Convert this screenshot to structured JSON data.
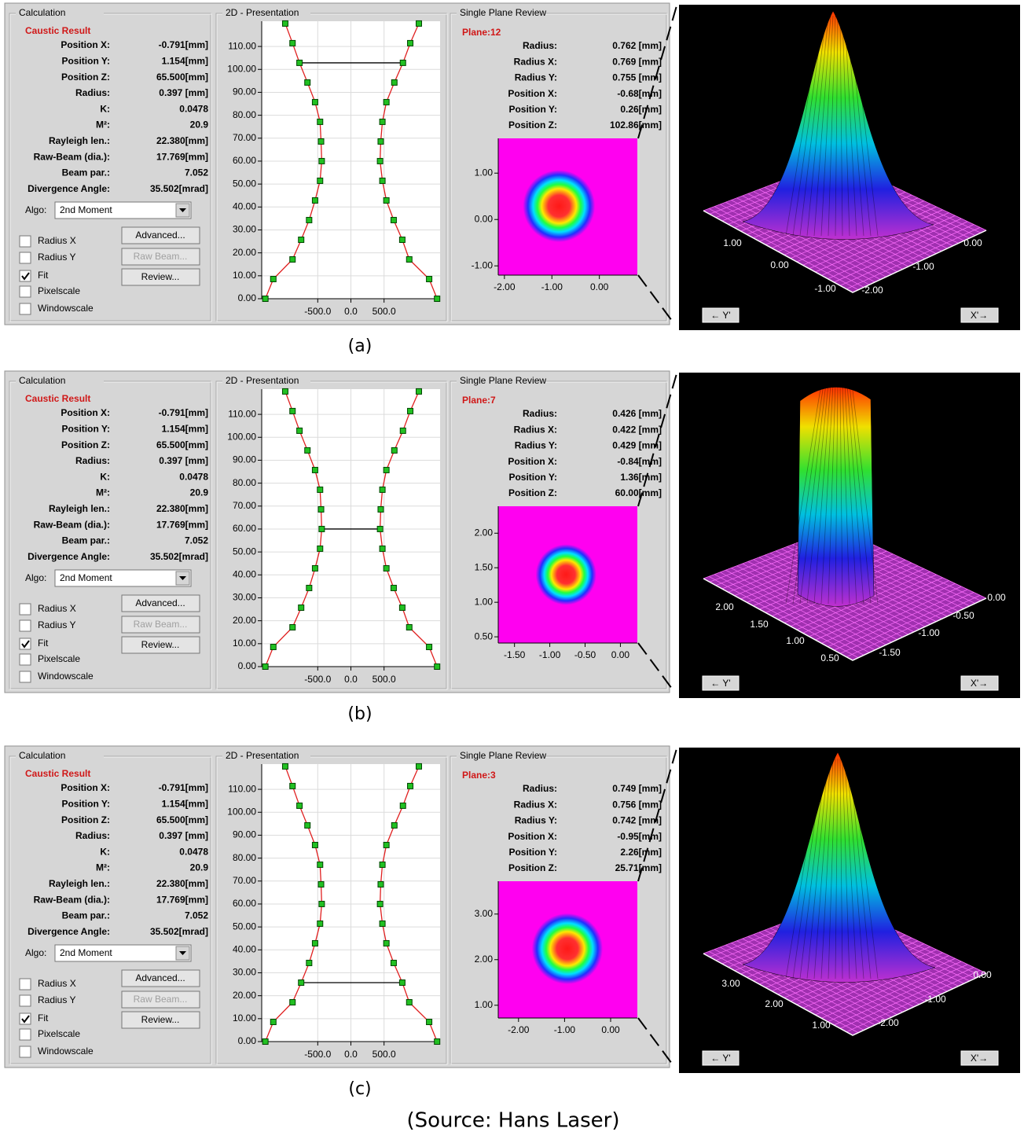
{
  "panels": [
    {
      "calculation": {
        "title": "Calculation",
        "result_title": "Caustic Result",
        "rows": [
          {
            "label": "Position X:",
            "value": "-0.791[mm]"
          },
          {
            "label": "Position Y:",
            "value": "1.154[mm]"
          },
          {
            "label": "Position Z:",
            "value": "65.500[mm]"
          },
          {
            "label": "Radius:",
            "value": "0.397 [mm]"
          },
          {
            "label": "K:",
            "value": "0.0478"
          },
          {
            "label": "M²:",
            "value": "20.9"
          },
          {
            "label": "Rayleigh len.:",
            "value": "22.380[mm]"
          },
          {
            "label": "Raw-Beam (dia.):",
            "value": "17.769[mm]"
          },
          {
            "label": "Beam par.:",
            "value": "7.052"
          },
          {
            "label": "Divergence Angle:",
            "value": "35.502[mrad]"
          }
        ],
        "algo_label": "Algo:",
        "algo": "2nd Moment",
        "checkboxes": [
          {
            "label": "Radius X",
            "checked": false
          },
          {
            "label": "Radius Y",
            "checked": false
          },
          {
            "label": "Fit",
            "checked": true
          },
          {
            "label": "Pixelscale",
            "checked": false
          },
          {
            "label": "Windowscale",
            "checked": false
          }
        ],
        "buttons": [
          "Advanced...",
          "Raw Beam...",
          "Review..."
        ]
      },
      "presentation": {
        "title": "2D - Presentation",
        "type": "scatter",
        "z": [
          0,
          8.57,
          17.14,
          25.71,
          34.29,
          42.86,
          51.43,
          60,
          68.57,
          77.14,
          85.71,
          94.29,
          102.86,
          111.43,
          120
        ],
        "left": [
          -1290,
          -1170,
          -880,
          -750,
          -630,
          -540,
          -465,
          -440,
          -450,
          -465,
          -540,
          -655,
          -775,
          -880,
          -990
        ],
        "right": [
          1300,
          1180,
          880,
          775,
          645,
          535,
          475,
          440,
          450,
          475,
          535,
          655,
          785,
          895,
          1025
        ],
        "xlim": [
          -1345,
          1345
        ],
        "xticks": [
          {
            "value": -500,
            "label": "-500.0"
          },
          {
            "value": 0,
            "label": "0.0"
          },
          {
            "value": 500,
            "label": "500.0"
          }
        ],
        "ylim": [
          0,
          121
        ],
        "yticks": [
          {
            "value": 0,
            "label": "0.00"
          },
          {
            "value": 10,
            "label": "10.00"
          },
          {
            "value": 20,
            "label": "20.00"
          },
          {
            "value": 30,
            "label": "30.00"
          },
          {
            "value": 40,
            "label": "40.00"
          },
          {
            "value": 50,
            "label": "50.00"
          },
          {
            "value": 60,
            "label": "60.00"
          },
          {
            "value": 70,
            "label": "70.00"
          },
          {
            "value": 80,
            "label": "80.00"
          },
          {
            "value": 90,
            "label": "90.00"
          },
          {
            "value": 100,
            "label": "100.00"
          },
          {
            "value": 110,
            "label": "110.00"
          }
        ],
        "highlight_z": 102.86,
        "grid": true
      },
      "plane_review": {
        "title": "Single Plane Review",
        "plane": "Plane:12",
        "rows": [
          {
            "label": "Radius:",
            "value": "0.762 [mm]"
          },
          {
            "label": "Radius X:",
            "value": "0.769 [mm]"
          },
          {
            "label": "Radius Y:",
            "value": "0.755 [mm]"
          },
          {
            "label": "Position X:",
            "value": "-0.68[mm]"
          },
          {
            "label": "Position Y:",
            "value": "0.26[mm]"
          },
          {
            "label": "Position Z:",
            "value": "102.86[mm]"
          }
        ],
        "xlim": [
          -2.13,
          0.8
        ],
        "xticks": [
          {
            "value": -2,
            "label": "-2.00"
          },
          {
            "value": -1,
            "label": "-1.00"
          },
          {
            "value": 0,
            "label": "0.00"
          }
        ],
        "ylim": [
          -1.2,
          1.75
        ],
        "yticks": [
          {
            "value": 1,
            "label": "1.00"
          },
          {
            "value": 0,
            "label": "0.00"
          },
          {
            "value": -1,
            "label": "-1.00"
          }
        ],
        "spot": {
          "cx": -0.85,
          "cy": 0.29,
          "r": 0.76
        }
      },
      "view3d": {
        "labels": [
          "1.00",
          "0.00",
          "-1.00",
          "-2.00",
          "-1.00",
          "0.00"
        ],
        "y_button": "← Y'",
        "x_button": "X'→"
      },
      "caption": "(a)"
    },
    {
      "calculation": {
        "title": "Calculation",
        "result_title": "Caustic Result",
        "rows": [
          {
            "label": "Position X:",
            "value": "-0.791[mm]"
          },
          {
            "label": "Position Y:",
            "value": "1.154[mm]"
          },
          {
            "label": "Position Z:",
            "value": "65.500[mm]"
          },
          {
            "label": "Radius:",
            "value": "0.397 [mm]"
          },
          {
            "label": "K:",
            "value": "0.0478"
          },
          {
            "label": "M²:",
            "value": "20.9"
          },
          {
            "label": "Rayleigh len.:",
            "value": "22.380[mm]"
          },
          {
            "label": "Raw-Beam (dia.):",
            "value": "17.769[mm]"
          },
          {
            "label": "Beam par.:",
            "value": "7.052"
          },
          {
            "label": "Divergence Angle:",
            "value": "35.502[mrad]"
          }
        ],
        "algo_label": "Algo:",
        "algo": "2nd Moment",
        "checkboxes": [
          {
            "label": "Radius X",
            "checked": false
          },
          {
            "label": "Radius Y",
            "checked": false
          },
          {
            "label": "Fit",
            "checked": true
          },
          {
            "label": "Pixelscale",
            "checked": false
          },
          {
            "label": "Windowscale",
            "checked": false
          }
        ],
        "buttons": [
          "Advanced...",
          "Raw Beam...",
          "Review..."
        ]
      },
      "presentation": {
        "title": "2D - Presentation",
        "type": "scatter",
        "z": [
          0,
          8.57,
          17.14,
          25.71,
          34.29,
          42.86,
          51.43,
          60,
          68.57,
          77.14,
          85.71,
          94.29,
          102.86,
          111.43,
          120
        ],
        "left": [
          -1290,
          -1170,
          -880,
          -750,
          -630,
          -540,
          -465,
          -440,
          -450,
          -465,
          -540,
          -655,
          -775,
          -880,
          -990
        ],
        "right": [
          1300,
          1180,
          880,
          775,
          645,
          535,
          475,
          440,
          450,
          475,
          535,
          655,
          785,
          895,
          1025
        ],
        "xlim": [
          -1345,
          1345
        ],
        "xticks": [
          {
            "value": -500,
            "label": "-500.0"
          },
          {
            "value": 0,
            "label": "0.0"
          },
          {
            "value": 500,
            "label": "500.0"
          }
        ],
        "ylim": [
          0,
          121
        ],
        "yticks": [
          {
            "value": 0,
            "label": "0.00"
          },
          {
            "value": 10,
            "label": "10.00"
          },
          {
            "value": 20,
            "label": "20.00"
          },
          {
            "value": 30,
            "label": "30.00"
          },
          {
            "value": 40,
            "label": "40.00"
          },
          {
            "value": 50,
            "label": "50.00"
          },
          {
            "value": 60,
            "label": "60.00"
          },
          {
            "value": 70,
            "label": "70.00"
          },
          {
            "value": 80,
            "label": "80.00"
          },
          {
            "value": 90,
            "label": "90.00"
          },
          {
            "value": 100,
            "label": "100.00"
          },
          {
            "value": 110,
            "label": "110.00"
          }
        ],
        "highlight_z": 60,
        "grid": true
      },
      "plane_review": {
        "title": "Single Plane Review",
        "plane": "Plane:7",
        "rows": [
          {
            "label": "Radius:",
            "value": "0.426 [mm]"
          },
          {
            "label": "Radius X:",
            "value": "0.422 [mm]"
          },
          {
            "label": "Radius Y:",
            "value": "0.429 [mm]"
          },
          {
            "label": "Position X:",
            "value": "-0.84[mm]"
          },
          {
            "label": "Position Y:",
            "value": "1.36[mm]"
          },
          {
            "label": "Position Z:",
            "value": "60.00[mm]"
          }
        ],
        "xlim": [
          -1.73,
          0.24
        ],
        "xticks": [
          {
            "value": -1.5,
            "label": "-1.50"
          },
          {
            "value": -1,
            "label": "-1.00"
          },
          {
            "value": -0.5,
            "label": "-0.50"
          },
          {
            "value": 0,
            "label": "0.00"
          }
        ],
        "ylim": [
          0.41,
          2.39
        ],
        "yticks": [
          {
            "value": 2,
            "label": "2.00"
          },
          {
            "value": 1.5,
            "label": "1.50"
          },
          {
            "value": 1,
            "label": "1.00"
          },
          {
            "value": 0.5,
            "label": "0.50"
          }
        ],
        "spot": {
          "cx": -0.77,
          "cy": 1.4,
          "r": 0.43
        }
      },
      "view3d": {
        "labels": [
          "2.00",
          "1.50",
          "1.00",
          "0.50",
          "-1.50",
          "-1.00",
          "-0.50",
          "0.00"
        ],
        "y_button": "← Y'",
        "x_button": "X'→"
      },
      "caption": "(b)"
    },
    {
      "calculation": {
        "title": "Calculation",
        "result_title": "Caustic Result",
        "rows": [
          {
            "label": "Position X:",
            "value": "-0.791[mm]"
          },
          {
            "label": "Position Y:",
            "value": "1.154[mm]"
          },
          {
            "label": "Position Z:",
            "value": "65.500[mm]"
          },
          {
            "label": "Radius:",
            "value": "0.397 [mm]"
          },
          {
            "label": "K:",
            "value": "0.0478"
          },
          {
            "label": "M²:",
            "value": "20.9"
          },
          {
            "label": "Rayleigh len.:",
            "value": "22.380[mm]"
          },
          {
            "label": "Raw-Beam (dia.):",
            "value": "17.769[mm]"
          },
          {
            "label": "Beam par.:",
            "value": "7.052"
          },
          {
            "label": "Divergence Angle:",
            "value": "35.502[mrad]"
          }
        ],
        "algo_label": "Algo:",
        "algo": "2nd Moment",
        "checkboxes": [
          {
            "label": "Radius X",
            "checked": false
          },
          {
            "label": "Radius Y",
            "checked": false
          },
          {
            "label": "Fit",
            "checked": true
          },
          {
            "label": "Pixelscale",
            "checked": false
          },
          {
            "label": "Windowscale",
            "checked": false
          }
        ],
        "buttons": [
          "Advanced...",
          "Raw Beam...",
          "Review..."
        ]
      },
      "presentation": {
        "title": "2D - Presentation",
        "type": "scatter",
        "z": [
          0,
          8.57,
          17.14,
          25.71,
          34.29,
          42.86,
          51.43,
          60,
          68.57,
          77.14,
          85.71,
          94.29,
          102.86,
          111.43,
          120
        ],
        "left": [
          -1290,
          -1170,
          -880,
          -750,
          -630,
          -540,
          -465,
          -440,
          -450,
          -465,
          -540,
          -655,
          -775,
          -880,
          -990
        ],
        "right": [
          1300,
          1180,
          880,
          775,
          645,
          535,
          475,
          440,
          450,
          475,
          535,
          655,
          785,
          895,
          1025
        ],
        "xlim": [
          -1345,
          1345
        ],
        "xticks": [
          {
            "value": -500,
            "label": "-500.0"
          },
          {
            "value": 0,
            "label": "0.0"
          },
          {
            "value": 500,
            "label": "500.0"
          }
        ],
        "ylim": [
          0,
          121
        ],
        "yticks": [
          {
            "value": 0,
            "label": "0.00"
          },
          {
            "value": 10,
            "label": "10.00"
          },
          {
            "value": 20,
            "label": "20.00"
          },
          {
            "value": 30,
            "label": "30.00"
          },
          {
            "value": 40,
            "label": "40.00"
          },
          {
            "value": 50,
            "label": "50.00"
          },
          {
            "value": 60,
            "label": "60.00"
          },
          {
            "value": 70,
            "label": "70.00"
          },
          {
            "value": 80,
            "label": "80.00"
          },
          {
            "value": 90,
            "label": "90.00"
          },
          {
            "value": 100,
            "label": "100.00"
          },
          {
            "value": 110,
            "label": "110.00"
          }
        ],
        "highlight_z": 25.71,
        "grid": true
      },
      "plane_review": {
        "title": "Single Plane Review",
        "plane": "Plane:3",
        "rows": [
          {
            "label": "Radius:",
            "value": "0.749 [mm]"
          },
          {
            "label": "Radius X:",
            "value": "0.756 [mm]"
          },
          {
            "label": "Radius Y:",
            "value": "0.742 [mm]"
          },
          {
            "label": "Position X:",
            "value": "-0.95[mm]"
          },
          {
            "label": "Position Y:",
            "value": "2.26[mm]"
          },
          {
            "label": "Position Z:",
            "value": "25.71[mm]"
          }
        ],
        "xlim": [
          -2.44,
          0.58
        ],
        "xticks": [
          {
            "value": -2,
            "label": "-2.00"
          },
          {
            "value": -1,
            "label": "-1.00"
          },
          {
            "value": 0,
            "label": "0.00"
          }
        ],
        "ylim": [
          0.72,
          3.72
        ],
        "yticks": [
          {
            "value": 3,
            "label": "3.00"
          },
          {
            "value": 2,
            "label": "2.00"
          },
          {
            "value": 1,
            "label": "1.00"
          }
        ],
        "spot": {
          "cx": -0.94,
          "cy": 2.24,
          "r": 0.77
        }
      },
      "view3d": {
        "labels": [
          "3.00",
          "2.00",
          "1.00",
          "-2.00",
          "-1.00",
          "0.00"
        ],
        "y_button": "← Y'",
        "x_button": "X'→"
      },
      "caption": "(c)"
    }
  ],
  "source": "(Source: Hans Laser)"
}
